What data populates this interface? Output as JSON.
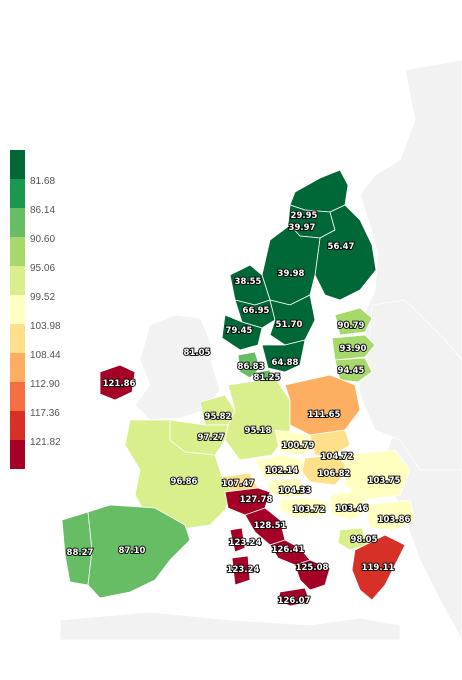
{
  "legend": {
    "labels": [
      "81.68",
      "86.14",
      "90.60",
      "95.06",
      "99.52",
      "103.98",
      "108.44",
      "112.90",
      "117.36",
      "121.82"
    ],
    "colors": [
      "#006837",
      "#1a9850",
      "#66bd63",
      "#a6d96a",
      "#d9ef8b",
      "#ffffbf",
      "#fee08b",
      "#fdae61",
      "#f46d43",
      "#d73027",
      "#a50026"
    ]
  },
  "regions": [
    {
      "id": "lapland",
      "value": "29.95"
    },
    {
      "id": "north-finland",
      "value": "39.97"
    },
    {
      "id": "east-finland",
      "value": "56.47"
    },
    {
      "id": "mid-norway",
      "value": "38.55"
    },
    {
      "id": "north-sweden",
      "value": "39.98"
    },
    {
      "id": "west-norway",
      "value": "66.95"
    },
    {
      "id": "south-norway",
      "value": "79.45"
    },
    {
      "id": "south-sweden",
      "value": "51.70"
    },
    {
      "id": "gotaland",
      "value": "64.88"
    },
    {
      "id": "estonia",
      "value": "90.79"
    },
    {
      "id": "latvia",
      "value": "93.90"
    },
    {
      "id": "lithuania",
      "value": "94.45"
    },
    {
      "id": "denmark",
      "value": "86.83"
    },
    {
      "id": "zealand",
      "value": "81.25"
    },
    {
      "id": "uk",
      "value": "81.05"
    },
    {
      "id": "ireland",
      "value": "121.86"
    },
    {
      "id": "benelux",
      "value": "95.82"
    },
    {
      "id": "germany",
      "value": "95.18"
    },
    {
      "id": "poland",
      "value": "111.65"
    },
    {
      "id": "north-france",
      "value": "97.27"
    },
    {
      "id": "czechia",
      "value": "100.79"
    },
    {
      "id": "slovakia",
      "value": "104.72"
    },
    {
      "id": "austria",
      "value": "102.14"
    },
    {
      "id": "hungary",
      "value": "106.82"
    },
    {
      "id": "romania",
      "value": "103.75"
    },
    {
      "id": "slovenia",
      "value": "104.33"
    },
    {
      "id": "switzerland",
      "value": "107.47"
    },
    {
      "id": "france",
      "value": "96.86"
    },
    {
      "id": "north-italy",
      "value": "127.78"
    },
    {
      "id": "croatia",
      "value": "103.72"
    },
    {
      "id": "serbia",
      "value": "103.46"
    },
    {
      "id": "bulgaria",
      "value": "103.86"
    },
    {
      "id": "central-italy",
      "value": "128.51"
    },
    {
      "id": "north-macedonia",
      "value": "98.05"
    },
    {
      "id": "corsica",
      "value": "123.24"
    },
    {
      "id": "south-italy",
      "value": "126.41"
    },
    {
      "id": "sardinia",
      "value": "123.24"
    },
    {
      "id": "calabria",
      "value": "125.08"
    },
    {
      "id": "greece",
      "value": "119.11"
    },
    {
      "id": "sicily",
      "value": "126.07"
    },
    {
      "id": "portugal",
      "value": "88.27"
    },
    {
      "id": "spain",
      "value": "87.10"
    }
  ]
}
